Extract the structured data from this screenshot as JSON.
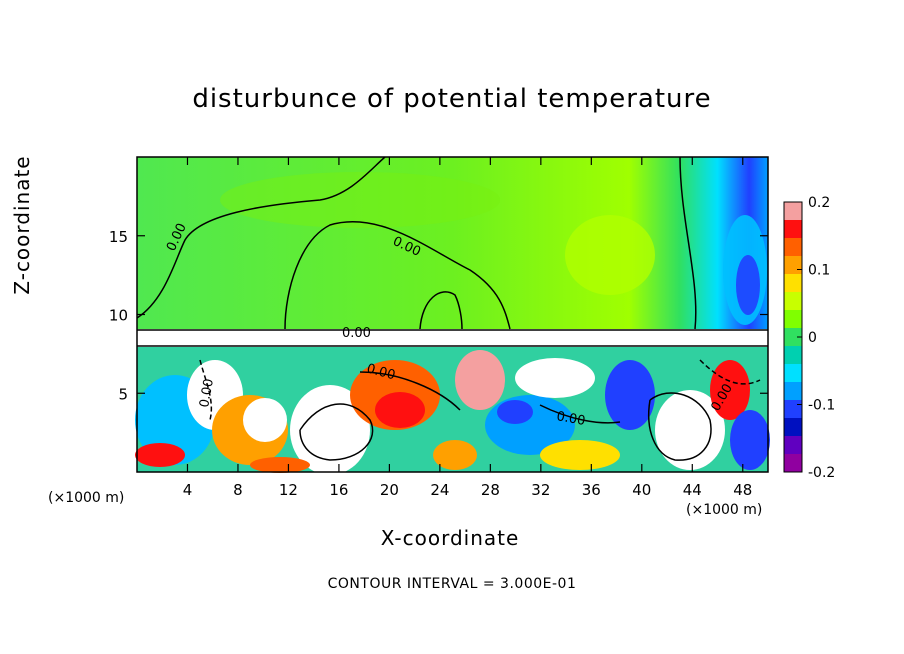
{
  "chart_data": {
    "type": "heatmap",
    "title": "disturbunce of potential temperature",
    "xlabel": "X-coordinate",
    "ylabel": "Z-coordinate",
    "x_unit_label": "(×1000 m)",
    "x_ticks": [
      4,
      8,
      12,
      16,
      20,
      24,
      28,
      32,
      36,
      40,
      44,
      48
    ],
    "y_ticks": [
      5,
      10,
      15
    ],
    "xlim": [
      0,
      50
    ],
    "ylim": [
      0,
      20
    ],
    "colorbar": {
      "ticks": [
        "0.2",
        "0.1",
        "0",
        "-0.1",
        "-0.2"
      ],
      "range": [
        -0.2,
        0.2
      ],
      "colors": [
        "#f4a0a0",
        "#ff1010",
        "#ff6000",
        "#ffa000",
        "#ffe000",
        "#c8ff00",
        "#80ff00",
        "#30e060",
        "#00d0b0",
        "#00e0ff",
        "#00a0ff",
        "#2040ff",
        "#0010c0",
        "#6000c0",
        "#9000a0"
      ]
    },
    "contour_labels": [
      "0.00",
      "0.00",
      "0.00",
      "0.00",
      "0.00",
      "0.00",
      "0.00"
    ],
    "grid": false,
    "legend": "colorbar-right"
  },
  "footer": "CONTOUR INTERVAL = 3.000E-01"
}
